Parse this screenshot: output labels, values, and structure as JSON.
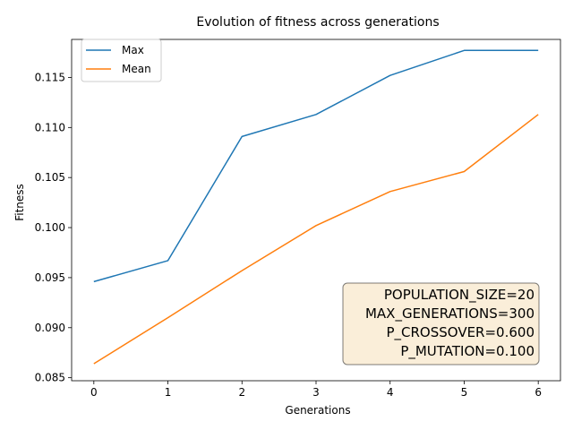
{
  "chart_data": {
    "type": "line",
    "title": "Evolution of fitness across generations",
    "xlabel": "Generations",
    "ylabel": "Fitness",
    "x": [
      0,
      1,
      2,
      3,
      4,
      5,
      6
    ],
    "xlim": [
      -0.3,
      6.3
    ],
    "ylim": [
      0.0847,
      0.1188
    ],
    "xticks": [
      0,
      1,
      2,
      3,
      4,
      5,
      6
    ],
    "yticks": [
      0.085,
      0.09,
      0.095,
      0.1,
      0.105,
      0.11,
      0.115
    ],
    "ytick_labels": [
      "0.085",
      "0.090",
      "0.095",
      "0.100",
      "0.105",
      "0.110",
      "0.115"
    ],
    "grid": false,
    "legend_position": "top-left",
    "series": [
      {
        "name": "Max",
        "color": "#1f77b4",
        "values": [
          0.0946,
          0.0967,
          0.1091,
          0.1113,
          0.1152,
          0.1177,
          0.1177
        ]
      },
      {
        "name": "Mean",
        "color": "#ff7f0e",
        "values": [
          0.0864,
          0.091,
          0.0957,
          0.1002,
          0.1036,
          0.1056,
          0.1113
        ]
      }
    ],
    "annotation": {
      "lines": [
        "POPULATION_SIZE=20",
        "MAX_GENERATIONS=300",
        "P_CROSSOVER=0.600",
        "P_MUTATION=0.100"
      ],
      "position": "bottom-right",
      "background": "#f5deb3"
    }
  }
}
